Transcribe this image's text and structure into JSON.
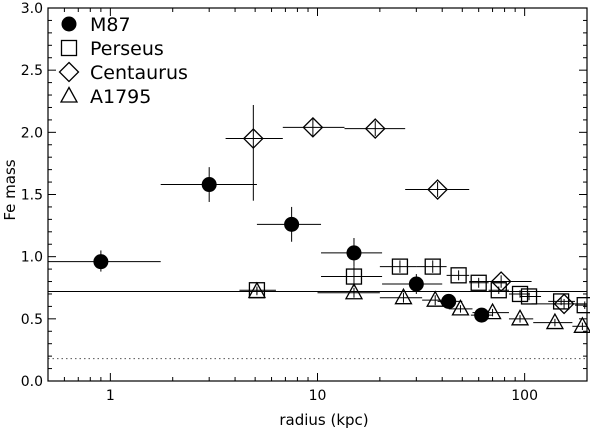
{
  "chart_data": {
    "type": "scatter",
    "xlabel": "radius (kpc)",
    "ylabel": "Fe mass",
    "xscale": "log",
    "xlim": [
      0.5,
      200
    ],
    "ylim": [
      0.0,
      3.0
    ],
    "xticks": [
      {
        "v": 1,
        "label": "1"
      },
      {
        "v": 10,
        "label": "10"
      },
      {
        "v": 100,
        "label": "100"
      }
    ],
    "yticks": [
      {
        "v": 0.0,
        "label": "0.0"
      },
      {
        "v": 0.5,
        "label": "0.5"
      },
      {
        "v": 1.0,
        "label": "1.0"
      },
      {
        "v": 1.5,
        "label": "1.5"
      },
      {
        "v": 2.0,
        "label": "2.0"
      },
      {
        "v": 2.5,
        "label": "2.5"
      },
      {
        "v": 3.0,
        "label": "3.0"
      }
    ],
    "legend_position": "top-left",
    "reference_lines": [
      {
        "y": 0.72,
        "style": "solid",
        "x_from": 0.5,
        "x_to": 200
      },
      {
        "y": 0.18,
        "style": "dotted",
        "x_from": 0.5,
        "x_to": 200
      }
    ],
    "series": [
      {
        "name": "M87",
        "marker": "filled-circle",
        "points": [
          {
            "x": 0.9,
            "y": 0.96,
            "xlo": 0.5,
            "xhi": 1.75,
            "ylo": 0.88,
            "yhi": 1.05
          },
          {
            "x": 3.0,
            "y": 1.58,
            "xlo": 1.75,
            "xhi": 5.1,
            "ylo": 1.44,
            "yhi": 1.72
          },
          {
            "x": 7.5,
            "y": 1.26,
            "xlo": 5.1,
            "xhi": 10.4,
            "ylo": 1.12,
            "yhi": 1.4
          },
          {
            "x": 15.0,
            "y": 1.03,
            "xlo": 10.4,
            "xhi": 20.5,
            "ylo": 0.92,
            "yhi": 1.15
          },
          {
            "x": 30.0,
            "y": 0.78,
            "xlo": 20.5,
            "xhi": 40.0,
            "ylo": 0.7,
            "yhi": 0.86
          },
          {
            "x": 43.0,
            "y": 0.64,
            "xlo": 38.0,
            "xhi": 50.0,
            "ylo": 0.59,
            "yhi": 0.69
          },
          {
            "x": 62.0,
            "y": 0.53,
            "xlo": 55.0,
            "xhi": 70.0,
            "ylo": 0.49,
            "yhi": 0.57
          }
        ]
      },
      {
        "name": "Perseus",
        "marker": "open-square",
        "points": [
          {
            "x": 5.1,
            "y": 0.73,
            "xlo": 4.2,
            "xhi": 6.3,
            "ylo": 0.7,
            "yhi": 0.76
          },
          {
            "x": 15.0,
            "y": 0.84,
            "xlo": 10.4,
            "xhi": 20.5,
            "ylo": 0.76,
            "yhi": 0.92
          },
          {
            "x": 25.0,
            "y": 0.92,
            "xlo": 20.0,
            "xhi": 30.0,
            "ylo": 0.87,
            "yhi": 0.97
          },
          {
            "x": 36.0,
            "y": 0.92,
            "xlo": 30.0,
            "xhi": 42.0,
            "ylo": 0.87,
            "yhi": 0.97
          },
          {
            "x": 48.0,
            "y": 0.85,
            "xlo": 42.0,
            "xhi": 54.0,
            "ylo": 0.81,
            "yhi": 0.89
          },
          {
            "x": 60.0,
            "y": 0.79,
            "xlo": 54.0,
            "xhi": 67.0,
            "ylo": 0.75,
            "yhi": 0.83
          },
          {
            "x": 75.0,
            "y": 0.73,
            "xlo": 67.0,
            "xhi": 84.0,
            "ylo": 0.7,
            "yhi": 0.76
          },
          {
            "x": 95.0,
            "y": 0.7,
            "xlo": 84.0,
            "xhi": 106.0,
            "ylo": 0.67,
            "yhi": 0.73
          },
          {
            "x": 105.0,
            "y": 0.68,
            "xlo": 95.0,
            "xhi": 120.0,
            "ylo": 0.65,
            "yhi": 0.71
          },
          {
            "x": 150.0,
            "y": 0.64,
            "xlo": 130.0,
            "xhi": 175.0,
            "ylo": 0.61,
            "yhi": 0.67
          },
          {
            "x": 195.0,
            "y": 0.61,
            "xlo": 175.0,
            "xhi": 200.0,
            "ylo": 0.58,
            "yhi": 0.64
          }
        ]
      },
      {
        "name": "Centaurus",
        "marker": "open-diamond",
        "points": [
          {
            "x": 4.9,
            "y": 1.95,
            "xlo": 3.6,
            "xhi": 6.8,
            "ylo": 1.45,
            "yhi": 2.22
          },
          {
            "x": 9.5,
            "y": 2.04,
            "xlo": 6.8,
            "xhi": 13.5,
            "ylo": 1.97,
            "yhi": 2.11
          },
          {
            "x": 19.0,
            "y": 2.03,
            "xlo": 13.5,
            "xhi": 26.5,
            "ylo": 1.97,
            "yhi": 2.09
          },
          {
            "x": 38.0,
            "y": 1.54,
            "xlo": 26.5,
            "xhi": 54.0,
            "ylo": 1.48,
            "yhi": 1.6
          },
          {
            "x": 77.0,
            "y": 0.8,
            "xlo": 54.0,
            "xhi": 108.0,
            "ylo": 0.75,
            "yhi": 0.85
          },
          {
            "x": 155.0,
            "y": 0.62,
            "xlo": 108.0,
            "xhi": 200.0,
            "ylo": 0.58,
            "yhi": 0.66
          }
        ]
      },
      {
        "name": "A1795",
        "marker": "open-triangle",
        "points": [
          {
            "x": 5.1,
            "y": 0.72,
            "xlo": 4.4,
            "xhi": 5.8,
            "ylo": 0.69,
            "yhi": 0.75
          },
          {
            "x": 15.0,
            "y": 0.71,
            "xlo": 10.0,
            "xhi": 20.0,
            "ylo": 0.67,
            "yhi": 0.75
          },
          {
            "x": 26.0,
            "y": 0.67,
            "xlo": 20.0,
            "xhi": 32.0,
            "ylo": 0.63,
            "yhi": 0.71
          },
          {
            "x": 37.0,
            "y": 0.65,
            "xlo": 32.0,
            "xhi": 43.0,
            "ylo": 0.61,
            "yhi": 0.69
          },
          {
            "x": 49.0,
            "y": 0.58,
            "xlo": 43.0,
            "xhi": 56.0,
            "ylo": 0.55,
            "yhi": 0.61
          },
          {
            "x": 70.0,
            "y": 0.55,
            "xlo": 56.0,
            "xhi": 84.0,
            "ylo": 0.52,
            "yhi": 0.58
          },
          {
            "x": 95.0,
            "y": 0.5,
            "xlo": 84.0,
            "xhi": 110.0,
            "ylo": 0.47,
            "yhi": 0.53
          },
          {
            "x": 140.0,
            "y": 0.47,
            "xlo": 110.0,
            "xhi": 170.0,
            "ylo": 0.44,
            "yhi": 0.5
          },
          {
            "x": 190.0,
            "y": 0.44,
            "xlo": 170.0,
            "xhi": 200.0,
            "ylo": 0.41,
            "yhi": 0.47
          }
        ]
      }
    ]
  }
}
